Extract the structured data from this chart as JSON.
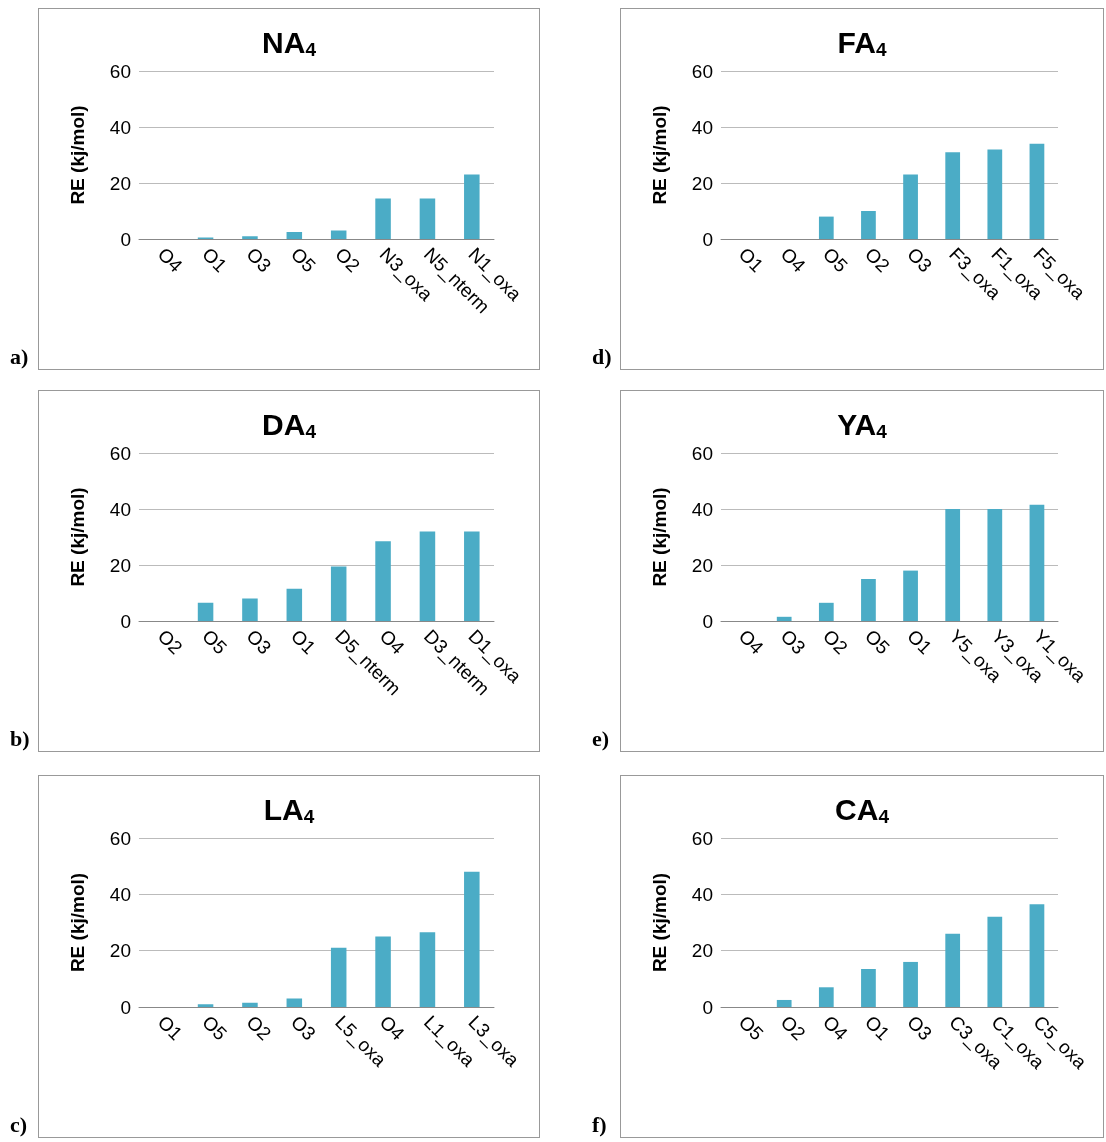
{
  "chart_data": [
    {
      "type": "bar",
      "title": "NA$_{4}$",
      "ylabel": "RE (kj/mol)",
      "annotations": [
        "a)"
      ],
      "categories": [
        "O4",
        "O1",
        "O3",
        "O5",
        "O2",
        "N3_oxa",
        "N5_nterm",
        "N1_oxa"
      ],
      "values": [
        0,
        0.5,
        1,
        2.5,
        3,
        14.5,
        14.5,
        23
      ],
      "color": "#4bacc6",
      "ylim": [
        0,
        60
      ],
      "yticks": [
        0,
        20,
        40,
        60
      ],
      "grid": "y"
    },
    {
      "type": "bar",
      "title": "FA$_{4}$",
      "ylabel": "RE (kj/mol)",
      "annotations": [
        "d)"
      ],
      "categories": [
        "O1",
        "O4",
        "O5",
        "O2",
        "O3",
        "F3_oxa",
        "F1_oxa",
        "F5_oxa"
      ],
      "values": [
        0,
        0,
        8,
        10,
        23,
        31,
        32,
        34
      ],
      "color": "#4bacc6",
      "ylim": [
        0,
        60
      ],
      "yticks": [
        0,
        20,
        40,
        60
      ],
      "grid": "y"
    },
    {
      "type": "bar",
      "title": "DA$_{4}$",
      "ylabel": "RE (kj/mol)",
      "annotations": [
        "b)"
      ],
      "categories": [
        "O2",
        "O5",
        "O3",
        "O1",
        "D5_nterm",
        "O4",
        "D3_nterm",
        "D1_oxa"
      ],
      "values": [
        0,
        6.5,
        8,
        11.5,
        19.5,
        28.5,
        32,
        32
      ],
      "color": "#4bacc6",
      "ylim": [
        0,
        60
      ],
      "yticks": [
        0,
        20,
        40,
        60
      ],
      "grid": "y"
    },
    {
      "type": "bar",
      "title": "YA$_{4}$",
      "ylabel": "RE (kj/mol)",
      "annotations": [
        "e)"
      ],
      "categories": [
        "O4",
        "O3",
        "O2",
        "O5",
        "O1",
        "Y5_oxa",
        "Y3_oxa",
        "Y1_oxa"
      ],
      "values": [
        0,
        1.5,
        6.5,
        15,
        18,
        40,
        40,
        41.5
      ],
      "color": "#4bacc6",
      "ylim": [
        0,
        60
      ],
      "yticks": [
        0,
        20,
        40,
        60
      ],
      "grid": "y"
    },
    {
      "type": "bar",
      "title": "LA$_{4}$",
      "ylabel": "RE (kj/mol)",
      "annotations": [
        "c)"
      ],
      "categories": [
        "O1",
        "O5",
        "O2",
        "O3",
        "L5_oxa",
        "O4",
        "L1_oxa",
        "L3_oxa"
      ],
      "values": [
        0,
        1,
        1.5,
        3,
        21,
        25,
        26.5,
        48
      ],
      "color": "#4bacc6",
      "ylim": [
        0,
        60
      ],
      "yticks": [
        0,
        20,
        40,
        60
      ],
      "grid": "y"
    },
    {
      "type": "bar",
      "title": "CA$_{4}$",
      "ylabel": "RE (kj/mol)",
      "annotations": [
        "f)"
      ],
      "categories": [
        "O5",
        "O2",
        "O4",
        "O1",
        "O3",
        "C3_oxa",
        "C1_oxa",
        "C5_oxa"
      ],
      "values": [
        0,
        2.5,
        7,
        13.5,
        16,
        26,
        32,
        36.5
      ],
      "color": "#4bacc6",
      "ylim": [
        0,
        60
      ],
      "yticks": [
        0,
        20,
        40,
        60
      ],
      "grid": "y"
    }
  ]
}
